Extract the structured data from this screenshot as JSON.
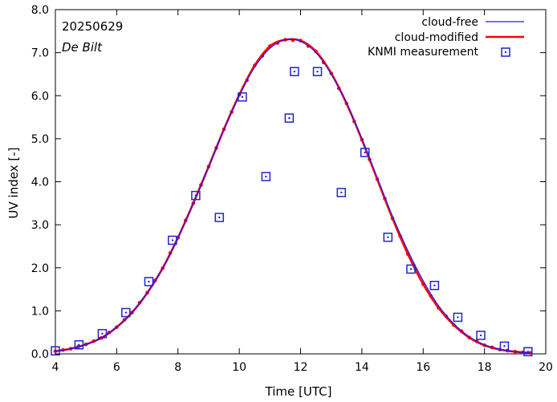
{
  "chart_data": {
    "type": "line",
    "date_label": "20250629",
    "location_label": "De Bilt",
    "xlabel": "Time  [UTC]",
    "ylabel": "UV index  [-]",
    "xlim": [
      4,
      20
    ],
    "ylim": [
      0,
      8
    ],
    "x_ticks": [
      4,
      6,
      8,
      10,
      12,
      14,
      16,
      18,
      20
    ],
    "x_tick_labels": [
      "4",
      "6",
      "8",
      "10",
      "12",
      "14",
      "16",
      "18",
      "20"
    ],
    "y_ticks": [
      0,
      1,
      2,
      3,
      4,
      5,
      6,
      7,
      8
    ],
    "y_tick_labels": [
      "0.0",
      "1.0",
      "2.0",
      "3.0",
      "4.0",
      "5.0",
      "6.0",
      "7.0",
      "8.0"
    ],
    "legend": {
      "position": "top-right",
      "entries": [
        "cloud-free",
        "cloud-modified",
        "KNMI measurement"
      ]
    },
    "colors": {
      "cloud_free": "#1a1aff",
      "cloud_modified": "#ff0000",
      "measurement": "#2323cc"
    },
    "series": [
      {
        "name": "cloud-free",
        "style": "thin-line",
        "x": [
          4.0,
          4.5,
          5.0,
          5.5,
          6.0,
          6.5,
          7.0,
          7.5,
          8.0,
          8.5,
          9.0,
          9.5,
          10.0,
          10.5,
          11.0,
          11.5,
          12.0,
          12.5,
          13.0,
          13.5,
          14.0,
          14.5,
          15.0,
          15.5,
          16.0,
          16.5,
          17.0,
          17.5,
          18.0,
          18.5,
          19.0,
          19.5
        ],
        "y": [
          0.06,
          0.12,
          0.22,
          0.37,
          0.62,
          0.96,
          1.42,
          1.99,
          2.7,
          3.5,
          4.35,
          5.22,
          6.0,
          6.66,
          7.1,
          7.3,
          7.26,
          7.0,
          6.5,
          5.83,
          5.0,
          4.1,
          3.2,
          2.4,
          1.7,
          1.12,
          0.7,
          0.4,
          0.21,
          0.11,
          0.05,
          0.02
        ]
      },
      {
        "name": "cloud-modified",
        "style": "thick-line-dots",
        "x": [
          4.0,
          4.5,
          5.0,
          5.5,
          6.0,
          6.5,
          7.0,
          7.5,
          8.0,
          8.5,
          9.0,
          9.5,
          10.0,
          10.5,
          11.0,
          11.5,
          12.0,
          12.5,
          13.0,
          13.5,
          14.0,
          14.5,
          15.0,
          15.5,
          16.0,
          16.5,
          17.0,
          17.5,
          18.0,
          18.5,
          19.0,
          19.5
        ],
        "y": [
          0.06,
          0.12,
          0.22,
          0.37,
          0.62,
          0.96,
          1.42,
          1.99,
          2.7,
          3.5,
          4.35,
          5.22,
          6.02,
          6.7,
          7.15,
          7.3,
          7.28,
          7.03,
          6.52,
          5.82,
          4.98,
          4.06,
          3.15,
          2.32,
          1.62,
          1.07,
          0.67,
          0.38,
          0.2,
          0.1,
          0.05,
          0.02
        ]
      },
      {
        "name": "KNMI measurement",
        "style": "square-markers",
        "x": [
          4.0,
          4.77,
          5.53,
          6.3,
          7.05,
          7.82,
          8.58,
          9.35,
          10.1,
          10.87,
          11.63,
          11.8,
          12.55,
          13.33,
          14.1,
          14.85,
          15.6,
          16.37,
          17.13,
          17.88,
          18.65,
          19.42
        ],
        "y": [
          0.07,
          0.21,
          0.47,
          0.96,
          1.68,
          2.64,
          3.68,
          3.17,
          5.97,
          4.12,
          5.48,
          6.56,
          6.56,
          3.75,
          4.68,
          2.71,
          1.97,
          1.59,
          0.85,
          0.43,
          0.18,
          0.05
        ]
      }
    ]
  }
}
